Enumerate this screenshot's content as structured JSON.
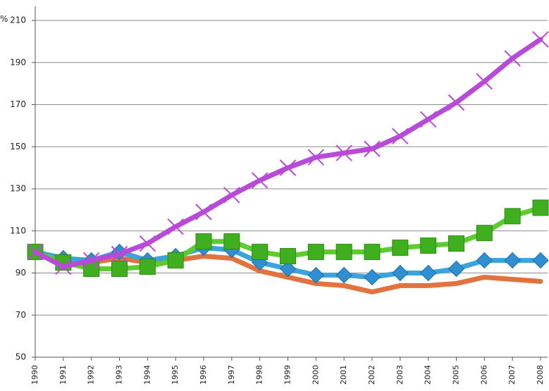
{
  "chart_data": {
    "type": "line",
    "unit_label": "%",
    "x": [
      "1990",
      "1991",
      "1992",
      "1993",
      "1994",
      "1995",
      "1996",
      "1997",
      "1998",
      "1999",
      "2000",
      "2001",
      "2002",
      "2003",
      "2004",
      "2005",
      "2006",
      "2007",
      "2008"
    ],
    "ylim": [
      50,
      210
    ],
    "yticks": [
      50,
      70,
      90,
      110,
      130,
      150,
      170,
      190,
      210
    ],
    "grid": "horizontal",
    "legend": "none",
    "series": [
      {
        "marker": "cross",
        "color": "#b84ad8",
        "values": [
          100,
          93,
          96,
          99,
          104,
          112,
          119,
          127,
          134,
          140,
          145,
          147,
          149,
          155,
          163,
          171,
          181,
          192,
          201
        ]
      },
      {
        "marker": "square",
        "color": "#5ccc2e",
        "marker_color": "#3fae1f",
        "values": [
          100,
          95,
          92,
          92,
          93,
          96,
          105,
          105,
          100,
          98,
          100,
          100,
          100,
          102,
          103,
          104,
          109,
          117,
          121
        ]
      },
      {
        "marker": "diamond",
        "color": "#3aa4dc",
        "marker_color": "#2f8fd0",
        "values": [
          100,
          97,
          96,
          100,
          96,
          98,
          102,
          101,
          95,
          92,
          89,
          89,
          88,
          90,
          90,
          92,
          96,
          96,
          96
        ]
      },
      {
        "marker": "none",
        "color": "#e0733e",
        "values": [
          100,
          97,
          95,
          97,
          95,
          96,
          98,
          97,
          91,
          88,
          85,
          84,
          81,
          84,
          84,
          85,
          88,
          87,
          86
        ]
      }
    ]
  }
}
